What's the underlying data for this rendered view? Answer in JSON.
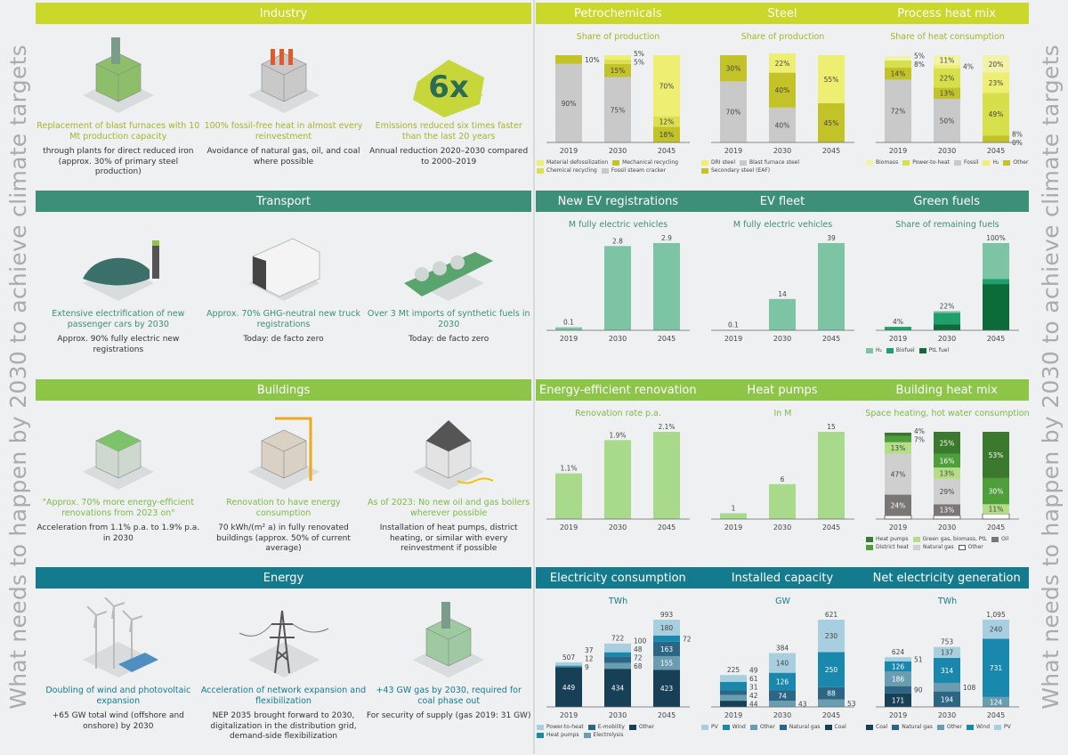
{
  "side_text": "What needs to happen by 2030 to achieve climate targets",
  "sections": [
    {
      "title": "Industry",
      "color": "#c9d82b",
      "text_color": "#a7b42a",
      "items": [
        {
          "icon": "steel-plant-icon",
          "head": "Replacement of blast furnaces with 10 Mt production capacity",
          "desc": "through plants for direct reduced iron (approx. 30% of primary steel production)"
        },
        {
          "icon": "factory-icon",
          "head": "100% fossil-free heat in almost every reinvestment",
          "desc": "Avoidance of natural gas, oil, and coal where possible"
        },
        {
          "icon": "six-times-emblem-icon",
          "emblem": "6x",
          "head": "Emissions reduced six times faster than the last 20 years",
          "desc": "Annual reduction 2020–2030 compared to 2000–2019"
        }
      ]
    },
    {
      "title": "Transport",
      "color": "#3e8f78",
      "text_color": "#3e8f78",
      "items": [
        {
          "icon": "electric-car-icon",
          "head": "Extensive electrification of new passenger cars by 2030",
          "desc": "Approx. 90% fully electric new registrations"
        },
        {
          "icon": "truck-icon",
          "head": "Approx. 70% GHG-neutral new truck registrations",
          "desc": "Today: de facto zero"
        },
        {
          "icon": "tanker-ship-icon",
          "head": "Over 3 Mt imports of synthetic fuels in 2030",
          "desc": "Today: de facto zero"
        }
      ]
    },
    {
      "title": "Buildings",
      "color": "#8dc549",
      "text_color": "#7dbb45",
      "items": [
        {
          "icon": "houses-icon",
          "head": "\"Approx. 70% more energy-efficient renovations from 2023 on\"",
          "desc": "Acceleration from 1.1% p.a. to 1.9% p.a. in 2030"
        },
        {
          "icon": "construction-crane-icon",
          "head": "Renovation to have energy consumption",
          "desc": "70 kWh/(m² a) in fully renovated buildings (approx. 50% of current average)"
        },
        {
          "icon": "house-heat-pump-icon",
          "head": "As of 2023: No new oil and gas boilers wherever possible",
          "desc": "Installation of heat pumps, district heating, or similar with every reinvestment if possible"
        }
      ]
    },
    {
      "title": "Energy",
      "color": "#147b8e",
      "text_color": "#147b8e",
      "items": [
        {
          "icon": "wind-turbines-solar-icon",
          "head": "Doubling of wind and photovoltaic expansion",
          "desc": "+65 GW total wind (offshore and onshore) by 2030"
        },
        {
          "icon": "power-pylon-icon",
          "head": "Acceleration of network expansion and flexibilization",
          "desc": "NEP 2035 brought forward to 2030, digitalization in the distribution grid, demand-side flexibilization"
        },
        {
          "icon": "gas-power-plant-icon",
          "head": "+43 GW gas by 2030, required for coal phase out",
          "desc": "For security of supply (gas 2019: 31 GW)"
        }
      ]
    }
  ],
  "chart_data": [
    [
      {
        "type": "bar",
        "stacked": true,
        "title": "Petrochemicals",
        "subtitle": "Share of production",
        "categories": [
          "2019",
          "2030",
          "2045"
        ],
        "ylim": [
          0,
          100
        ],
        "series": [
          {
            "name": "Fossil steam cracker",
            "color": "#c9c9c9",
            "values": [
              90,
              75,
              0
            ],
            "labels": [
              "90%",
              "75%",
              null
            ]
          },
          {
            "name": "Mechanical recycling",
            "color": "#c3c229",
            "values": [
              10,
              15,
              18
            ],
            "labels": [
              "10%",
              "15%",
              "18%"
            ]
          },
          {
            "name": "Chemical recycling",
            "color": "#dbe051",
            "values": [
              0,
              5,
              12
            ],
            "labels": [
              null,
              "5%",
              "12%"
            ]
          },
          {
            "name": "Material defossilization",
            "color": "#eeee72",
            "values": [
              0,
              5,
              70
            ],
            "labels": [
              null,
              "5%",
              "70%"
            ]
          }
        ],
        "legend_order": [
          3,
          1,
          2,
          0
        ]
      },
      {
        "type": "bar",
        "stacked": true,
        "title": "Steel",
        "subtitle": "Share of production",
        "categories": [
          "2019",
          "2030",
          "2045"
        ],
        "ylim": [
          0,
          100
        ],
        "series": [
          {
            "name": "Blast furnace steel",
            "color": "#c9c9c9",
            "values": [
              70,
              40,
              0
            ],
            "labels": [
              "70%",
              "40%",
              null
            ]
          },
          {
            "name": "Secondary steel (EAF)",
            "color": "#c3c229",
            "values": [
              30,
              40,
              45
            ],
            "labels": [
              "30%",
              "40%",
              "45%"
            ]
          },
          {
            "name": "DRI steel",
            "color": "#eeee72",
            "values": [
              0,
              22,
              55
            ],
            "labels": [
              null,
              "22%",
              "55%"
            ]
          }
        ],
        "legend_order": [
          2,
          0,
          1
        ]
      },
      {
        "type": "bar",
        "stacked": true,
        "title": "Process heat mix",
        "subtitle": "Share of heat consumption",
        "categories": [
          "2019",
          "2030",
          "2045"
        ],
        "ylim": [
          0,
          100
        ],
        "series": [
          {
            "name": "Fossil",
            "color": "#c9c9c9",
            "values": [
              72,
              50,
              0
            ],
            "labels": [
              "72%",
              "50%",
              "0%"
            ]
          },
          {
            "name": "Other",
            "color": "#c3c229",
            "values": [
              14,
              13,
              8
            ],
            "labels": [
              "14%",
              "13%",
              "8%"
            ]
          },
          {
            "name": "Power-to-heat",
            "color": "#d6e04a",
            "values": [
              8,
              22,
              49
            ],
            "labels": [
              "8%",
              "22%",
              "49%"
            ]
          },
          {
            "name": "H₂",
            "color": "#eeee72",
            "values": [
              0,
              4,
              23
            ],
            "labels": [
              null,
              "4%",
              "23%"
            ]
          },
          {
            "name": "Biomass",
            "color": "#f2f2a8",
            "values": [
              5,
              11,
              20
            ],
            "labels": [
              "5%",
              "11%",
              "20%"
            ]
          }
        ],
        "legend_order": [
          4,
          2,
          0,
          3,
          1
        ]
      }
    ],
    [
      {
        "type": "bar",
        "title": "New EV registrations",
        "subtitle": "M fully electric vehicles",
        "categories": [
          "2019",
          "2030",
          "2045"
        ],
        "ylim": [
          0,
          2.9
        ],
        "series": [
          {
            "name": "",
            "color": "#7cc4a4",
            "values": [
              0.1,
              2.8,
              2.9
            ]
          }
        ],
        "totals": [
          "0.1",
          "2.8",
          "2.9"
        ]
      },
      {
        "type": "bar",
        "title": "EV fleet",
        "subtitle": "M fully electric vehicles",
        "categories": [
          "2019",
          "2030",
          "2045"
        ],
        "ylim": [
          0,
          39
        ],
        "series": [
          {
            "name": "",
            "color": "#7cc4a4",
            "values": [
              0.1,
              14,
              39
            ]
          }
        ],
        "totals": [
          "0.1",
          "14",
          "39"
        ]
      },
      {
        "type": "bar",
        "stacked": true,
        "title": "Green fuels",
        "subtitle": "Share of remaining fuels",
        "categories": [
          "2019",
          "2030",
          "2045"
        ],
        "ylim": [
          0,
          100
        ],
        "series": [
          {
            "name": "PtL fuel",
            "color": "#0d6b3a",
            "values": [
              0,
              7,
              53
            ]
          },
          {
            "name": "Biofuel",
            "color": "#1fa06a",
            "values": [
              4,
              13,
              6
            ]
          },
          {
            "name": "H₂",
            "color": "#7cc4a4",
            "values": [
              0,
              2,
              41
            ]
          }
        ],
        "totals": [
          "4%",
          "22%",
          "100%"
        ],
        "legend_order": [
          2,
          1,
          0
        ]
      }
    ],
    [
      {
        "type": "bar",
        "title": "Energy-efficient renovation",
        "subtitle": "Renovation rate p.a.",
        "categories": [
          "2019",
          "2030",
          "2045"
        ],
        "ylim": [
          0,
          2.1
        ],
        "series": [
          {
            "name": "",
            "color": "#a9d98a",
            "values": [
              1.1,
              1.9,
              2.1
            ]
          }
        ],
        "totals": [
          "1.1%",
          "1.9%",
          "2.1%"
        ]
      },
      {
        "type": "bar",
        "title": "Heat pumps",
        "subtitle": "In M",
        "categories": [
          "2019",
          "2030",
          "2045"
        ],
        "ylim": [
          0,
          15
        ],
        "series": [
          {
            "name": "",
            "color": "#a9d98a",
            "values": [
              1,
              6,
              15
            ]
          }
        ],
        "totals": [
          "1",
          "6",
          "15"
        ]
      },
      {
        "type": "bar",
        "stacked": true,
        "title": "Building heat mix",
        "subtitle": "Space heating, hot water consumption",
        "categories": [
          "2019",
          "2030",
          "2045"
        ],
        "ylim": [
          0,
          100
        ],
        "series": [
          {
            "name": "Other",
            "color": "#ffffff",
            "values": [
              4,
              4,
              6
            ]
          },
          {
            "name": "Oil",
            "color": "#7a7676",
            "values": [
              24,
              13,
              0
            ],
            "labels": [
              "24%",
              "13%",
              null
            ]
          },
          {
            "name": "Natural gas",
            "color": "#cfcfcf",
            "values": [
              47,
              29,
              0
            ],
            "labels": [
              "47%",
              "29%",
              null
            ]
          },
          {
            "name": "Green gas, biomass, PtL",
            "color": "#b5dd85",
            "values": [
              13,
              13,
              11
            ],
            "labels": [
              "13%",
              "13%",
              "11%"
            ]
          },
          {
            "name": "District heat",
            "color": "#4f9e3c",
            "values": [
              7,
              16,
              30
            ],
            "labels": [
              "7%",
              "16%",
              "30%"
            ]
          },
          {
            "name": "Heat pumps",
            "color": "#3b7a2e",
            "values": [
              4,
              25,
              53
            ],
            "labels": [
              "4%",
              "25%",
              "53%"
            ]
          }
        ],
        "legend_order": [
          5,
          3,
          1,
          4,
          2,
          0
        ]
      }
    ],
    [
      {
        "type": "bar",
        "stacked": true,
        "title": "Electricity consumption",
        "subtitle": "TWh",
        "categories": [
          "2019",
          "2030",
          "2045"
        ],
        "ylim": [
          0,
          993
        ],
        "series": [
          {
            "name": "Other",
            "color": "#173f55",
            "values": [
              449,
              434,
              423
            ],
            "labels": [
              "449",
              "434",
              "423"
            ]
          },
          {
            "name": "Electrolysis",
            "color": "#6a9db0",
            "values": [
              0,
              68,
              155
            ],
            "labels": [
              null,
              "68",
              "155"
            ]
          },
          {
            "name": "E-mobility",
            "color": "#2c6684",
            "values": [
              9,
              72,
              163
            ],
            "labels": [
              "9",
              "72",
              "163"
            ]
          },
          {
            "name": "Heat pumps",
            "color": "#1a88ad",
            "values": [
              12,
              48,
              72
            ],
            "labels": [
              "12",
              "48",
              "72"
            ]
          },
          {
            "name": "Power-to-heat",
            "color": "#a8cfe0",
            "values": [
              37,
              100,
              180
            ],
            "labels": [
              "37",
              "100",
              "180"
            ]
          }
        ],
        "totals": [
          "507",
          "722",
          "993"
        ],
        "legend_order": [
          4,
          2,
          0,
          3,
          1
        ]
      },
      {
        "type": "bar",
        "stacked": true,
        "title": "Installed capacity",
        "subtitle": "GW",
        "categories": [
          "2019",
          "2030",
          "2045"
        ],
        "ylim": [
          0,
          621
        ],
        "series": [
          {
            "name": "Coal",
            "color": "#173f55",
            "values": [
              44,
              0,
              0
            ],
            "labels": [
              "44",
              null,
              null
            ]
          },
          {
            "name": "Other",
            "color": "#6a9db0",
            "values": [
              42,
              43,
              53
            ],
            "labels": [
              "42",
              "43",
              "53"
            ]
          },
          {
            "name": "Natural gas",
            "color": "#2c6684",
            "values": [
              31,
              74,
              88
            ],
            "labels": [
              "31",
              "74",
              "88"
            ]
          },
          {
            "name": "Wind",
            "color": "#1a88ad",
            "values": [
              61,
              126,
              250
            ],
            "labels": [
              "61",
              "126",
              "250"
            ]
          },
          {
            "name": "PV",
            "color": "#a8cfe0",
            "values": [
              49,
              140,
              230
            ],
            "labels": [
              "49",
              "140",
              "230"
            ]
          }
        ],
        "totals": [
          "225",
          "384",
          "621"
        ],
        "legend_order": [
          4,
          3,
          1,
          2,
          0
        ]
      },
      {
        "type": "bar",
        "stacked": true,
        "title": "Net electricity generation",
        "subtitle": "TWh",
        "categories": [
          "2019",
          "2030",
          "2045"
        ],
        "ylim": [
          0,
          1095
        ],
        "series": [
          {
            "name": "Coal",
            "color": "#173f55",
            "values": [
              171,
              0,
              0
            ],
            "labels": [
              "171",
              null,
              null
            ]
          },
          {
            "name": "Natural gas",
            "color": "#2c6684",
            "values": [
              90,
              194,
              0
            ],
            "labels": [
              "90",
              "194",
              null
            ]
          },
          {
            "name": "Other",
            "color": "#6a9db0",
            "values": [
              186,
              108,
              124
            ],
            "labels": [
              "186",
              "108",
              "124"
            ]
          },
          {
            "name": "Wind",
            "color": "#1a88ad",
            "values": [
              126,
              314,
              731
            ],
            "labels": [
              "126",
              "314",
              "731"
            ]
          },
          {
            "name": "PV",
            "color": "#a8cfe0",
            "values": [
              51,
              137,
              240
            ],
            "labels": [
              "51",
              "137",
              "240"
            ]
          }
        ],
        "totals": [
          "624",
          "753",
          "1,095"
        ],
        "legend_order": []
      }
    ]
  ]
}
